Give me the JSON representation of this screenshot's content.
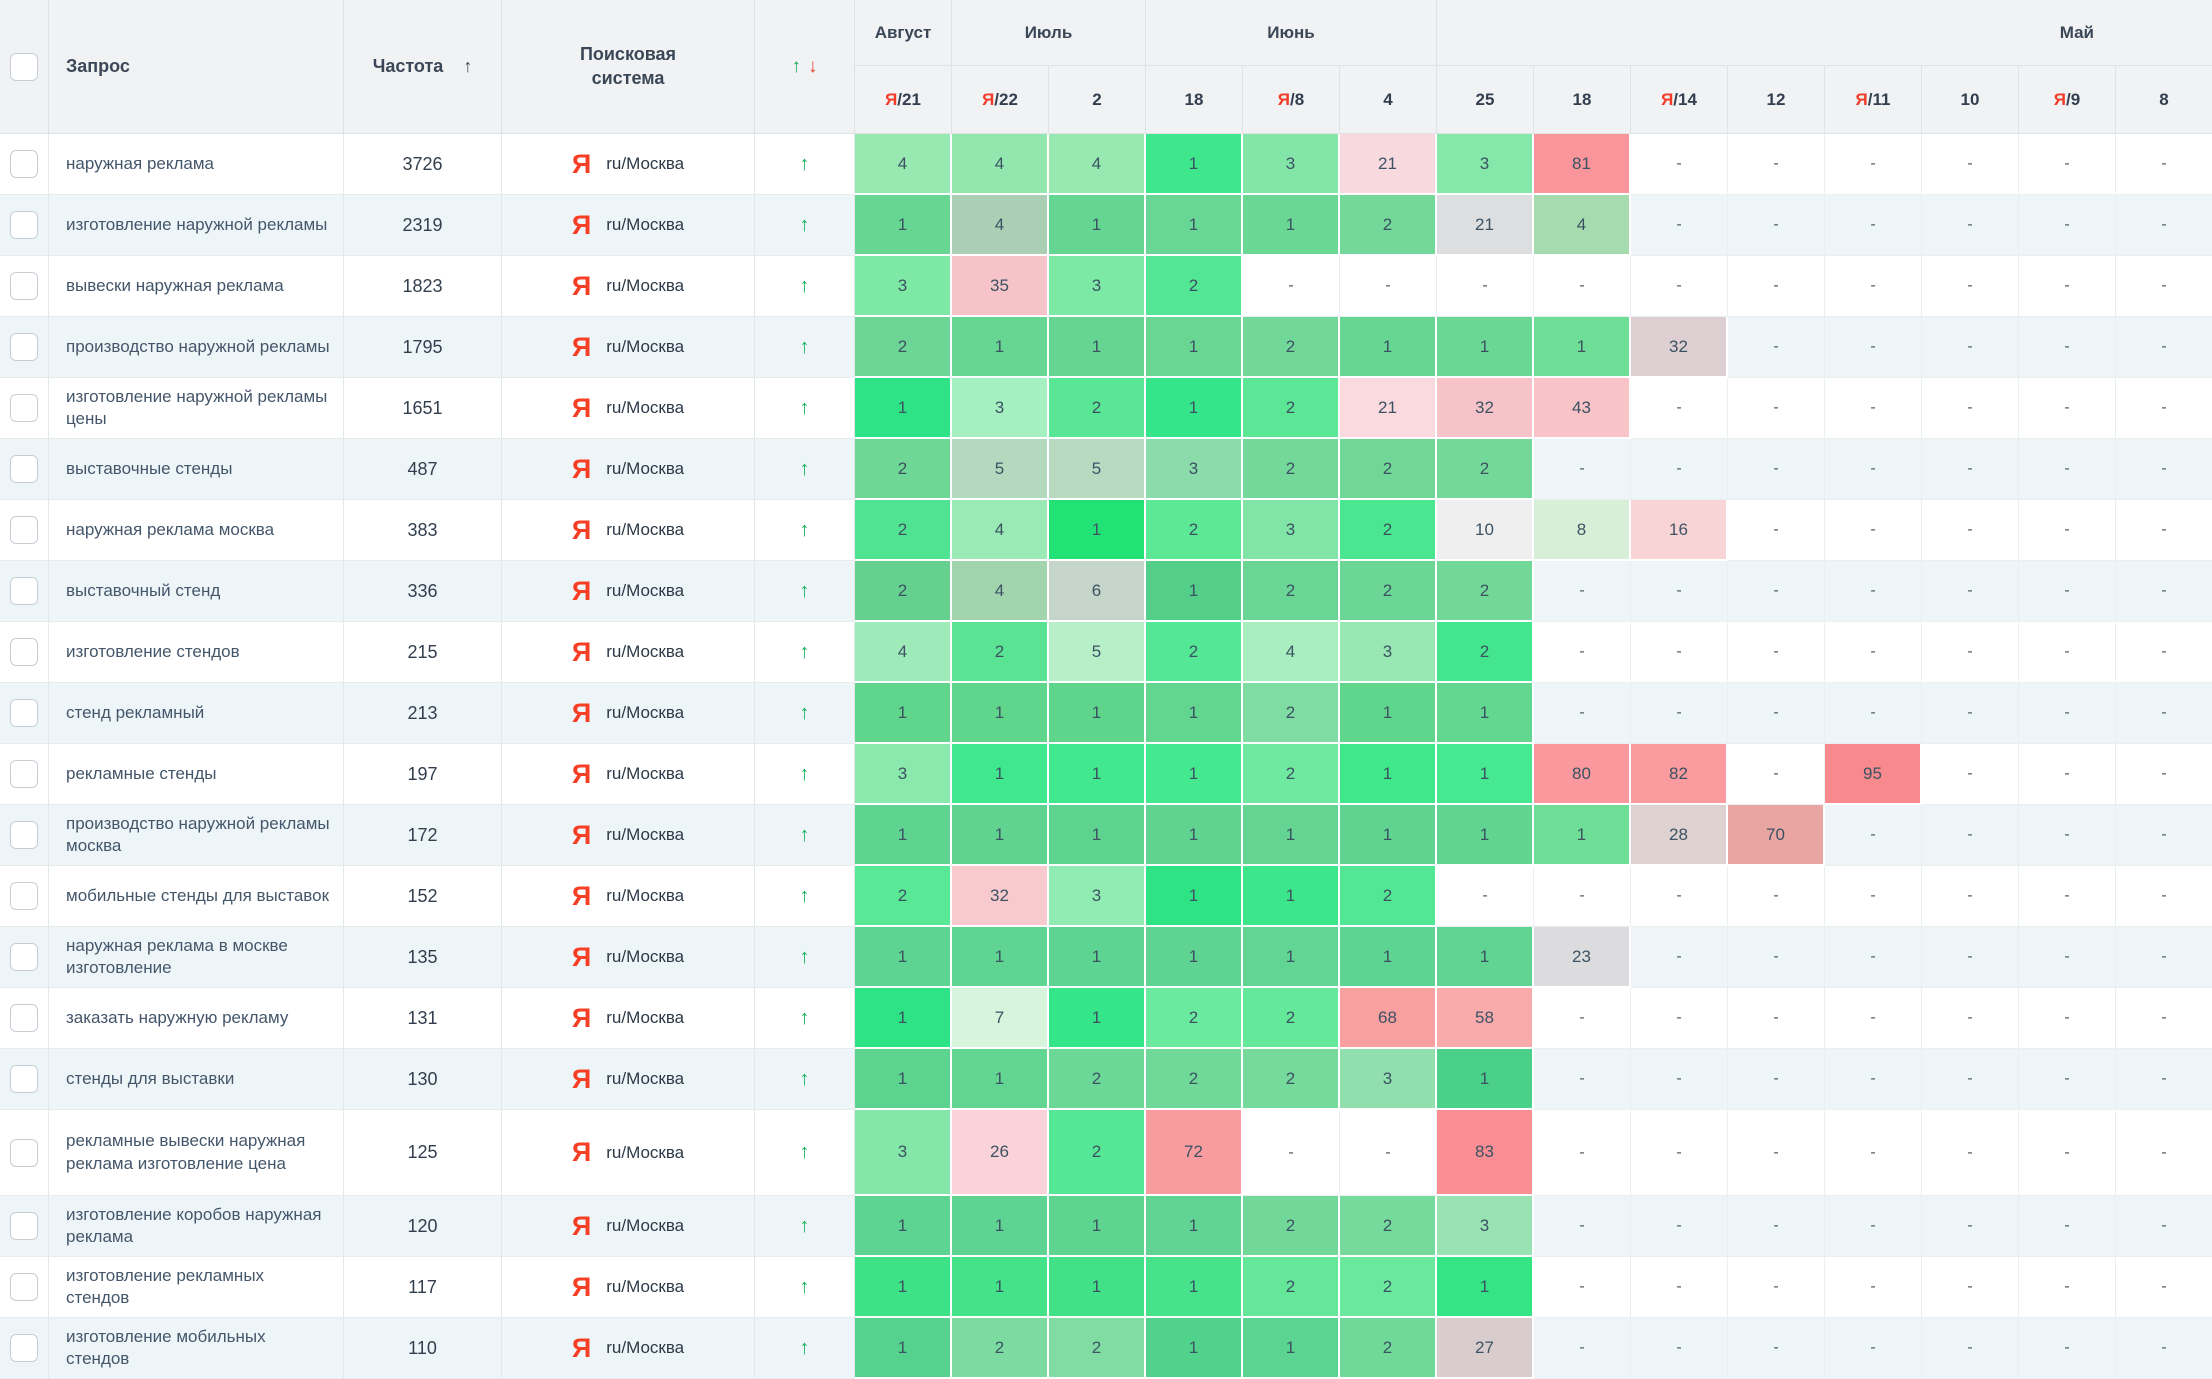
{
  "table": {
    "columns": {
      "query": "Запрос",
      "frequency": "Частота",
      "frequency_sort_icon": "↑",
      "search_engine": "Поисковая система",
      "trend_up_icon": "↑",
      "trend_down_icon": "↓"
    },
    "months": [
      {
        "label": "Август",
        "span": 1
      },
      {
        "label": "Июль",
        "span": 2
      },
      {
        "label": "Июнь",
        "span": 3
      },
      {
        "label": "Май",
        "span": 8,
        "label_offset": "right"
      }
    ],
    "dates": [
      {
        "prefix": "Я",
        "day": "21"
      },
      {
        "prefix": "Я",
        "day": "22"
      },
      {
        "day": "2"
      },
      {
        "day": "18"
      },
      {
        "prefix": "Я",
        "day": "8"
      },
      {
        "day": "4"
      },
      {
        "day": "25"
      },
      {
        "day": "18"
      },
      {
        "prefix": "Я",
        "day": "14"
      },
      {
        "day": "12"
      },
      {
        "prefix": "Я",
        "day": "11"
      },
      {
        "day": "10"
      },
      {
        "prefix": "Я",
        "day": "9"
      },
      {
        "day": "8"
      }
    ],
    "search_engine_value": {
      "icon": "Я",
      "label": "ru/Москва"
    },
    "empty_cell": "-",
    "rows": [
      {
        "query": "наружная реклама",
        "frequency": "3726",
        "trend": "up",
        "positions": [
          "4",
          "4",
          "4",
          "1",
          "3",
          "21",
          "3",
          "81",
          "-",
          "-",
          "-",
          "-",
          "-",
          "-"
        ],
        "cell_colors": [
          "#97e8b1",
          "#92e7ae",
          "#97e8b1",
          "#3ee68c",
          "#83e6a8",
          "#f8dade",
          "#85e7a9",
          "#f9959b",
          null,
          null,
          null,
          null,
          null,
          null
        ]
      },
      {
        "query": "изготовление наружной рекламы",
        "frequency": "2319",
        "trend": "up",
        "positions": [
          "1",
          "4",
          "1",
          "1",
          "1",
          "2",
          "21",
          "4",
          "-",
          "-",
          "-",
          "-",
          "-",
          "-"
        ],
        "cell_colors": [
          "#67d693",
          "#aacfb4",
          "#65d592",
          "#68d694",
          "#6bd795",
          "#74d89a",
          "#dcdee0",
          "#a6dbb0",
          null,
          null,
          null,
          null,
          null,
          null
        ]
      },
      {
        "query": "вывески наружная реклама",
        "frequency": "1823",
        "trend": "up",
        "positions": [
          "3",
          "35",
          "3",
          "2",
          "-",
          "-",
          "-",
          "-",
          "-",
          "-",
          "-",
          "-",
          "-",
          "-"
        ],
        "cell_colors": [
          "#7ee9a5",
          "#f6c3c9",
          "#7ce9a4",
          "#52e695",
          null,
          null,
          null,
          null,
          null,
          null,
          null,
          null,
          null,
          null
        ]
      },
      {
        "query": "производство наружной рекламы",
        "frequency": "1795",
        "trend": "up",
        "positions": [
          "2",
          "1",
          "1",
          "1",
          "2",
          "1",
          "1",
          "1",
          "32",
          "-",
          "-",
          "-",
          "-",
          "-"
        ],
        "cell_colors": [
          "#6dd595",
          "#68d693",
          "#66d592",
          "#69d694",
          "#72d899",
          "#68d693",
          "#6bd795",
          "#6ede96",
          "#ddcfd2",
          null,
          null,
          null,
          null,
          null
        ]
      },
      {
        "query": "изготовление наружной рекламы цены",
        "frequency": "1651",
        "trend": "up",
        "positions": [
          "1",
          "3",
          "2",
          "1",
          "2",
          "21",
          "32",
          "43",
          "-",
          "-",
          "-",
          "-",
          "-",
          "-"
        ],
        "cell_colors": [
          "#2ee385",
          "#a5f0c0",
          "#59e796",
          "#35e58a",
          "#5ce797",
          "#fadadf",
          "#f6c3c9",
          "#f8c4c8",
          null,
          null,
          null,
          null,
          null,
          null
        ]
      },
      {
        "query": "выставочные стенды",
        "frequency": "487",
        "trend": "up",
        "positions": [
          "2",
          "5",
          "5",
          "3",
          "2",
          "2",
          "2",
          "-",
          "-",
          "-",
          "-",
          "-",
          "-",
          "-"
        ],
        "cell_colors": [
          "#6fd796",
          "#b3d9be",
          "#b8dac1",
          "#8cdcab",
          "#73d89a",
          "#70d797",
          "#74d89a",
          null,
          null,
          null,
          null,
          null,
          null,
          null
        ]
      },
      {
        "query": "наружная реклама москва",
        "frequency": "383",
        "trend": "up",
        "positions": [
          "2",
          "4",
          "1",
          "2",
          "3",
          "2",
          "10",
          "8",
          "16",
          "-",
          "-",
          "-",
          "-",
          "-"
        ],
        "cell_colors": [
          "#4fe392",
          "#9aeab5",
          "#22e276",
          "#5ce996",
          "#82e5a8",
          "#4ae690",
          "#efeff0",
          "#d8efd7",
          "#f9d4d6",
          null,
          null,
          null,
          null,
          null
        ]
      },
      {
        "query": "выставочный стенд",
        "frequency": "336",
        "trend": "up",
        "positions": [
          "2",
          "4",
          "6",
          "1",
          "2",
          "2",
          "2",
          "-",
          "-",
          "-",
          "-",
          "-",
          "-",
          "-"
        ],
        "cell_colors": [
          "#66d18f",
          "#a2d4ad",
          "#c6d5c9",
          "#54cf89",
          "#6ad594",
          "#6bd695",
          "#71d898",
          null,
          null,
          null,
          null,
          null,
          null,
          null
        ]
      },
      {
        "query": "изготовление стендов",
        "frequency": "215",
        "trend": "up",
        "positions": [
          "4",
          "2",
          "5",
          "2",
          "4",
          "3",
          "2",
          "-",
          "-",
          "-",
          "-",
          "-",
          "-",
          "-"
        ],
        "cell_colors": [
          "#9feab9",
          "#59e392",
          "#b7f0c8",
          "#54e896",
          "#a8eebf",
          "#99e8b4",
          "#44e68d",
          null,
          null,
          null,
          null,
          null,
          null,
          null
        ]
      },
      {
        "query": "стенд рекламный",
        "frequency": "213",
        "trend": "up",
        "positions": [
          "1",
          "1",
          "1",
          "1",
          "2",
          "1",
          "1",
          "-",
          "-",
          "-",
          "-",
          "-",
          "-",
          "-"
        ],
        "cell_colors": [
          "#5fd68c",
          "#60d68d",
          "#5ed58b",
          "#62d68f",
          "#7fdda4",
          "#5fd68c",
          "#63d690",
          null,
          null,
          null,
          null,
          null,
          null,
          null
        ]
      },
      {
        "query": "рекламные стенды",
        "frequency": "197",
        "trend": "up",
        "positions": [
          "3",
          "1",
          "1",
          "1",
          "2",
          "1",
          "1",
          "80",
          "82",
          "-",
          "95",
          "-",
          "-",
          "-"
        ],
        "cell_colors": [
          "#8ae9ad",
          "#3fe88c",
          "#41e88d",
          "#44e88f",
          "#6fe99f",
          "#3ee88b",
          "#46e890",
          "#f9999e",
          "#f99b9f",
          null,
          "#f8898c",
          null,
          null,
          null
        ]
      },
      {
        "query": "производство наружной рекламы москва",
        "frequency": "172",
        "trend": "up",
        "positions": [
          "1",
          "1",
          "1",
          "1",
          "1",
          "1",
          "1",
          "1",
          "28",
          "70",
          "-",
          "-",
          "-",
          "-"
        ],
        "cell_colors": [
          "#5fd390",
          "#61d391",
          "#5ed38f",
          "#60d390",
          "#63d492",
          "#60d390",
          "#62d491",
          "#6ede96",
          "#ddd2d0",
          "#e8a5a2",
          null,
          null,
          null,
          null
        ]
      },
      {
        "query": "мобильные стенды для выставок",
        "frequency": "152",
        "trend": "up",
        "positions": [
          "2",
          "32",
          "3",
          "1",
          "1",
          "2",
          "-",
          "-",
          "-",
          "-",
          "-",
          "-",
          "-",
          "-"
        ],
        "cell_colors": [
          "#59e896",
          "#f8c9cd",
          "#90ecb3",
          "#2ee383",
          "#3ce68a",
          "#52e794",
          null,
          null,
          null,
          null,
          null,
          null,
          null,
          null
        ]
      },
      {
        "query": "наружная реклама в москве изготовление",
        "frequency": "135",
        "trend": "up",
        "positions": [
          "1",
          "1",
          "1",
          "1",
          "1",
          "1",
          "1",
          "23",
          "-",
          "-",
          "-",
          "-",
          "-",
          "-"
        ],
        "cell_colors": [
          "#5ed492",
          "#60d493",
          "#5dd491",
          "#5fd492",
          "#62d594",
          "#5ed492",
          "#61d493",
          "#dcdcde",
          null,
          null,
          null,
          null,
          null,
          null
        ]
      },
      {
        "query": "заказать наружную рекламу",
        "frequency": "131",
        "trend": "up",
        "positions": [
          "1",
          "7",
          "1",
          "2",
          "2",
          "68",
          "58",
          "-",
          "-",
          "-",
          "-",
          "-",
          "-",
          "-"
        ],
        "cell_colors": [
          "#2ee385",
          "#d6f5dc",
          "#35e589",
          "#6aea9e",
          "#64e99b",
          "#f89f9f",
          "#f9abab",
          null,
          null,
          null,
          null,
          null,
          null,
          null
        ]
      },
      {
        "query": "стенды для выставки",
        "frequency": "130",
        "trend": "up",
        "positions": [
          "1",
          "1",
          "2",
          "2",
          "2",
          "3",
          "1",
          "-",
          "-",
          "-",
          "-",
          "-",
          "-",
          "-"
        ],
        "cell_colors": [
          "#5cd38f",
          "#62d593",
          "#6cd897",
          "#70d899",
          "#75da9c",
          "#90dfad",
          "#4bd089",
          null,
          null,
          null,
          null,
          null,
          null,
          null
        ]
      },
      {
        "query": "рекламные вывески наружная реклама изготовление цена",
        "frequency": "125",
        "trend": "up",
        "positions": [
          "3",
          "26",
          "2",
          "72",
          "-",
          "-",
          "83",
          "-",
          "-",
          "-",
          "-",
          "-",
          "-",
          "-"
        ],
        "cell_colors": [
          "#84e7a9",
          "#f9d3d8",
          "#55e795",
          "#f99ca0",
          null,
          null,
          "#f98f94",
          null,
          null,
          null,
          null,
          null,
          null,
          null
        ]
      },
      {
        "query": "изготовление коробов наружная реклама",
        "frequency": "120",
        "trend": "up",
        "positions": [
          "1",
          "1",
          "1",
          "1",
          "2",
          "2",
          "3",
          "-",
          "-",
          "-",
          "-",
          "-",
          "-",
          "-"
        ],
        "cell_colors": [
          "#5dd491",
          "#5fd492",
          "#5ed491",
          "#61d493",
          "#72d89a",
          "#77da9d",
          "#99e2b2",
          null,
          null,
          null,
          null,
          null,
          null,
          null
        ]
      },
      {
        "query": "изготовление рекламных стендов",
        "frequency": "117",
        "trend": "up",
        "positions": [
          "1",
          "1",
          "1",
          "1",
          "2",
          "2",
          "1",
          "-",
          "-",
          "-",
          "-",
          "-",
          "-",
          "-"
        ],
        "cell_colors": [
          "#3ee286",
          "#44e389",
          "#41e287",
          "#46e38a",
          "#65e79a",
          "#6ae89d",
          "#35e485",
          null,
          null,
          null,
          null,
          null,
          null,
          null
        ]
      },
      {
        "query": "изготовление мобильных стендов",
        "frequency": "110",
        "trend": "up",
        "positions": [
          "1",
          "2",
          "2",
          "1",
          "1",
          "2",
          "27",
          "-",
          "-",
          "-",
          "-",
          "-",
          "-",
          "-"
        ],
        "cell_colors": [
          "#55d28d",
          "#7cdba1",
          "#80dca3",
          "#51d28c",
          "#5bd491",
          "#70d899",
          "#d9cccd",
          null,
          null,
          null,
          null,
          null,
          null,
          null
        ]
      }
    ]
  },
  "colors": {
    "yandex_red": "#f63f24",
    "trend_up_green": "#13b25b",
    "header_up_green": "#1aa75a",
    "header_down_red": "#e84536",
    "header_bg": "#f1f2f4",
    "stripe_bg": "#eef5f9"
  }
}
